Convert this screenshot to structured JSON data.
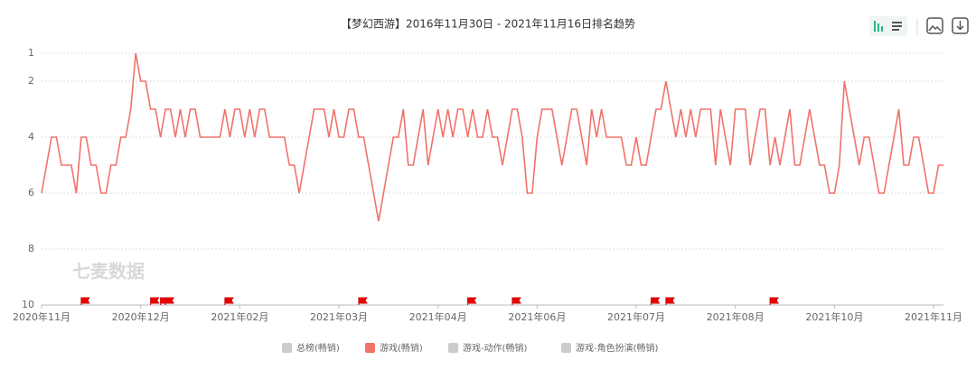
{
  "chart_data": {
    "type": "line",
    "title": "【梦幻西游】2016年11月30日 - 2021年11月16日排名趋势",
    "watermark": "七麦数据",
    "xlim": [
      0,
      182
    ],
    "xticks": [
      {
        "value": 0,
        "label": "2020年11月"
      },
      {
        "value": 20,
        "label": "2020年12月"
      },
      {
        "value": 40,
        "label": "2021年02月"
      },
      {
        "value": 60,
        "label": "2021年03月"
      },
      {
        "value": 80,
        "label": "2021年04月"
      },
      {
        "value": 100,
        "label": "2021年06月"
      },
      {
        "value": 120,
        "label": "2021年07月"
      },
      {
        "value": 140,
        "label": "2021年08月"
      },
      {
        "value": 160,
        "label": "2021年10月"
      },
      {
        "value": 180,
        "label": "2021年11月"
      }
    ],
    "ylim": [
      1,
      10
    ],
    "y_inverted": true,
    "yticks": [
      1,
      2,
      4,
      6,
      8,
      10
    ],
    "grid": true,
    "series": [
      {
        "name": "游戏(畅销)",
        "color": "#f0726a",
        "values": [
          6,
          5,
          4,
          4,
          5,
          5,
          5,
          6,
          4,
          4,
          5,
          5,
          6,
          6,
          5,
          5,
          4,
          4,
          3,
          1,
          2,
          2,
          3,
          3,
          4,
          3,
          3,
          4,
          3,
          4,
          3,
          3,
          4,
          4,
          4,
          4,
          4,
          3,
          4,
          3,
          3,
          4,
          3,
          4,
          3,
          3,
          4,
          4,
          4,
          4,
          5,
          5,
          6,
          5,
          4,
          3,
          3,
          3,
          4,
          3,
          4,
          4,
          3,
          3,
          4,
          4,
          5,
          6,
          7,
          6,
          5,
          4,
          4,
          3,
          5,
          5,
          4,
          3,
          5,
          4,
          3,
          4,
          3,
          4,
          3,
          3,
          4,
          3,
          4,
          4,
          3,
          4,
          4,
          5,
          4,
          3,
          3,
          4,
          6,
          6,
          4,
          3,
          3,
          3,
          4,
          5,
          4,
          3,
          3,
          4,
          5,
          3,
          4,
          3,
          4,
          4,
          4,
          4,
          5,
          5,
          4,
          5,
          5,
          4,
          3,
          3,
          2,
          3,
          4,
          3,
          4,
          3,
          4,
          3,
          3,
          3,
          5,
          3,
          4,
          5,
          3,
          3,
          3,
          5,
          4,
          3,
          3,
          5,
          4,
          5,
          4,
          3,
          5,
          5,
          4,
          3,
          4,
          5,
          5,
          6,
          6,
          5,
          2,
          3,
          4,
          5,
          4,
          4,
          5,
          6,
          6,
          5,
          4,
          3,
          5,
          5,
          4,
          4,
          5,
          6,
          6,
          5,
          5
        ]
      }
    ],
    "events": [
      8,
      22,
      24,
      25,
      37,
      64,
      86,
      95,
      123,
      126,
      147
    ],
    "legend": [
      {
        "name": "总榜(畅销)",
        "color": "#cccccc"
      },
      {
        "name": "游戏(畅销)",
        "color": "#f0726a"
      },
      {
        "name": "游戏-动作(畅销)",
        "color": "#cccccc"
      },
      {
        "name": "游戏-角色扮演(畅销)",
        "color": "#cccccc"
      }
    ]
  }
}
